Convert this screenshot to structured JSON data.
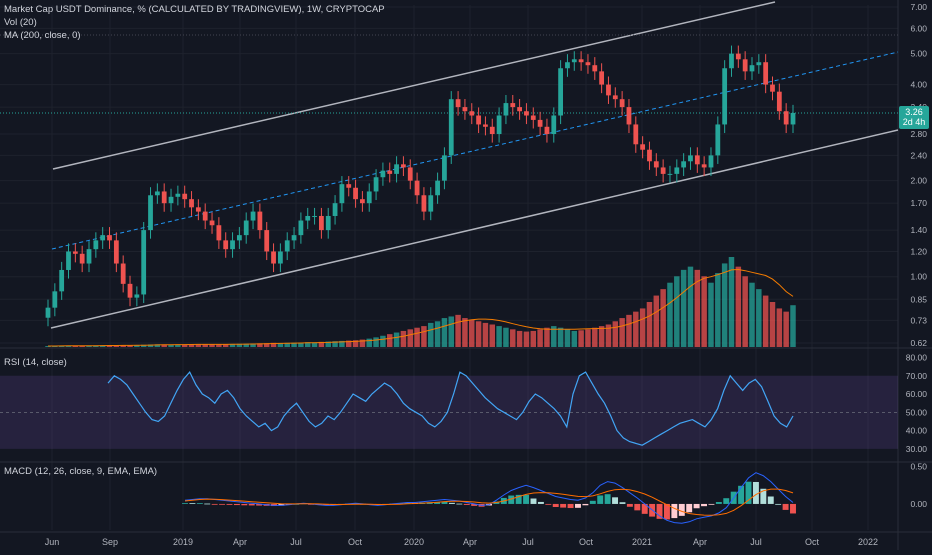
{
  "header": {
    "title": "Market Cap USDT Dominance, % (CALCULATED BY TRADINGVIEW), 1W, CRYPTOCAP",
    "vol_label": "Vol (20)",
    "ma_label": "MA (200, close, 0)"
  },
  "rsi_pane": {
    "label": "RSI (14, close)"
  },
  "macd_pane": {
    "label": "MACD (12, 26, close, 9, EMA, EMA)"
  },
  "price_badge": {
    "value": "3.26",
    "countdown": "2d 4h"
  },
  "colors": {
    "background": "#131722",
    "up": "#26a69a",
    "down": "#ef5350",
    "channel": "#b2b5be",
    "midline": "#2196f3",
    "rsi_line": "#42a5f5",
    "rsi_band": "#7e57c2",
    "volume_ma": "#f57c00",
    "macd_line": "#2962ff",
    "signal_line": "#ff6d00"
  },
  "chart_data": [
    {
      "type": "candlestick",
      "title": "Market Cap USDT Dominance, % (CALCULATED BY TRADINGVIEW), 1W, CRYPTOCAP",
      "scale": "log",
      "x_ticks": [
        "Jun",
        "Sep",
        "2019",
        "Apr",
        "Jul",
        "Oct",
        "2020",
        "Apr",
        "Jul",
        "Oct",
        "2021",
        "Apr",
        "Jul",
        "Oct",
        "2022"
      ],
      "y_ticks": [
        "7.00",
        "6.00",
        "5.00",
        "4.00",
        "3.40",
        "2.80",
        "2.40",
        "2.00",
        "1.70",
        "1.40",
        "1.20",
        "1.00",
        "0.85",
        "0.73",
        "0.62"
      ],
      "last_value": 3.26,
      "x_range": [
        "2018-05",
        "2022-02"
      ],
      "series_close": [
        0.8,
        0.9,
        1.05,
        1.2,
        1.18,
        1.1,
        1.22,
        1.3,
        1.35,
        1.3,
        1.1,
        0.95,
        0.86,
        0.88,
        1.4,
        1.8,
        1.85,
        1.7,
        1.78,
        1.82,
        1.75,
        1.65,
        1.6,
        1.5,
        1.45,
        1.3,
        1.22,
        1.3,
        1.35,
        1.5,
        1.6,
        1.4,
        1.2,
        1.1,
        1.2,
        1.3,
        1.35,
        1.5,
        1.55,
        1.55,
        1.4,
        1.55,
        1.7,
        1.95,
        1.9,
        1.75,
        1.7,
        1.85,
        2.05,
        2.15,
        2.1,
        2.25,
        2.2,
        2.0,
        1.8,
        1.6,
        1.8,
        2.0,
        2.4,
        3.6,
        3.4,
        3.3,
        3.2,
        3.0,
        2.95,
        2.8,
        3.2,
        3.5,
        3.4,
        3.3,
        3.2,
        3.1,
        2.95,
        2.8,
        3.2,
        4.5,
        4.7,
        4.8,
        4.7,
        4.6,
        4.4,
        4.0,
        3.7,
        3.6,
        3.4,
        3.0,
        2.6,
        2.5,
        2.3,
        2.2,
        2.1,
        2.1,
        2.2,
        2.3,
        2.4,
        2.25,
        2.2,
        2.4,
        3.0,
        4.5,
        5.0,
        4.8,
        4.4,
        4.6,
        4.7,
        4.0,
        3.8,
        3.3,
        3.0,
        3.26
      ]
    },
    {
      "type": "bar",
      "title": "Vol (20)",
      "values": [
        0.3,
        0.35,
        0.4,
        0.45,
        0.42,
        0.4,
        0.48,
        0.5,
        0.52,
        0.55,
        0.5,
        0.55,
        0.6,
        0.58,
        0.7,
        0.8,
        0.85,
        0.8,
        0.78,
        0.75,
        0.8,
        0.82,
        0.85,
        0.8,
        0.78,
        0.82,
        0.9,
        0.95,
        1.0,
        1.0,
        1.1,
        1.15,
        1.2,
        1.3,
        1.25,
        1.3,
        1.35,
        1.4,
        1.5,
        1.45,
        1.6,
        1.7,
        1.8,
        1.9,
        2.0,
        2.1,
        2.3,
        2.6,
        3.0,
        3.5,
        4.0,
        4.5,
        5.0,
        5.5,
        6.0,
        6.5,
        7.5,
        8.0,
        9.0,
        9.5,
        10,
        9.0,
        8.5,
        8.0,
        7.5,
        7.0,
        6.5,
        6.0,
        5.5,
        5.0,
        4.8,
        5.0,
        5.5,
        6.0,
        6.5,
        6.0,
        5.5,
        5.0,
        5.2,
        5.5,
        6.0,
        6.5,
        7.0,
        8.0,
        9.0,
        10,
        11,
        12,
        14,
        16,
        18,
        20,
        22,
        24,
        25,
        24,
        22,
        20,
        23,
        26,
        28,
        25,
        22,
        20,
        18,
        16,
        14,
        12,
        11,
        13
      ]
    },
    {
      "type": "line",
      "title": "RSI (14, close)",
      "y_ticks": [
        "80.00",
        "70.00",
        "60.00",
        "50.00",
        "40.00",
        "30.00"
      ],
      "band": [
        30,
        70
      ],
      "values": [
        66,
        70,
        68,
        65,
        60,
        55,
        50,
        46,
        45,
        48,
        55,
        62,
        68,
        72,
        65,
        60,
        58,
        55,
        60,
        62,
        58,
        52,
        48,
        45,
        42,
        44,
        40,
        42,
        48,
        52,
        55,
        50,
        45,
        42,
        44,
        48,
        46,
        50,
        55,
        60,
        58,
        56,
        60,
        63,
        66,
        64,
        60,
        55,
        52,
        50,
        48,
        44,
        42,
        45,
        50,
        60,
        72,
        70,
        66,
        62,
        58,
        55,
        52,
        50,
        48,
        46,
        50,
        56,
        60,
        58,
        55,
        52,
        48,
        42,
        60,
        70,
        72,
        66,
        60,
        55,
        48,
        40,
        36,
        34,
        33,
        32,
        34,
        36,
        38,
        40,
        42,
        44,
        45,
        46,
        44,
        42,
        46,
        52,
        62,
        70,
        66,
        62,
        66,
        68,
        64,
        56,
        48,
        44,
        42,
        48
      ]
    },
    {
      "type": "line",
      "title": "MACD (12, 26, close, 9, EMA, EMA)",
      "y_ticks": [
        "0.50",
        "0.00"
      ],
      "series": [
        {
          "name": "MACD",
          "values": [
            0.05,
            0.06,
            0.07,
            0.07,
            0.06,
            0.05,
            0.04,
            0.03,
            0.02,
            0.01,
            0.0,
            -0.01,
            -0.02,
            -0.02,
            -0.01,
            0.0,
            0.01,
            0.0,
            -0.01,
            -0.02,
            -0.02,
            -0.01,
            0.0,
            0.01,
            0.0,
            -0.01,
            -0.02,
            -0.01,
            0.0,
            0.01,
            0.02,
            0.02,
            0.03,
            0.04,
            0.05,
            0.06,
            0.05,
            0.04,
            0.02,
            0.0,
            -0.02,
            -0.01,
            0.05,
            0.12,
            0.18,
            0.22,
            0.25,
            0.22,
            0.18,
            0.14,
            0.1,
            0.08,
            0.06,
            0.05,
            0.08,
            0.15,
            0.25,
            0.3,
            0.28,
            0.22,
            0.15,
            0.08,
            0.0,
            -0.08,
            -0.16,
            -0.22,
            -0.25,
            -0.26,
            -0.24,
            -0.2,
            -0.18,
            -0.16,
            -0.12,
            -0.05,
            0.08,
            0.22,
            0.35,
            0.42,
            0.38,
            0.3,
            0.2,
            0.1,
            0.02
          ]
        },
        {
          "name": "Signal",
          "values": [
            0.04,
            0.05,
            0.06,
            0.065,
            0.063,
            0.058,
            0.052,
            0.045,
            0.038,
            0.03,
            0.022,
            0.015,
            0.008,
            0.003,
            0.0,
            0.0,
            0.002,
            0.002,
            0.0,
            -0.004,
            -0.007,
            -0.008,
            -0.006,
            -0.003,
            -0.002,
            -0.004,
            -0.007,
            -0.008,
            -0.006,
            -0.003,
            0.002,
            0.006,
            0.011,
            0.017,
            0.024,
            0.031,
            0.035,
            0.036,
            0.033,
            0.026,
            0.017,
            0.011,
            0.019,
            0.039,
            0.067,
            0.098,
            0.128,
            0.147,
            0.153,
            0.151,
            0.141,
            0.129,
            0.115,
            0.102,
            0.098,
            0.108,
            0.136,
            0.169,
            0.191,
            0.197,
            0.188,
            0.166,
            0.133,
            0.09,
            0.04,
            -0.012,
            -0.06,
            -0.1,
            -0.128,
            -0.142,
            -0.15,
            -0.152,
            -0.146,
            -0.127,
            -0.085,
            -0.024,
            0.051,
            0.125,
            0.176,
            0.2,
            0.2,
            0.18,
            0.148
          ]
        }
      ]
    }
  ]
}
